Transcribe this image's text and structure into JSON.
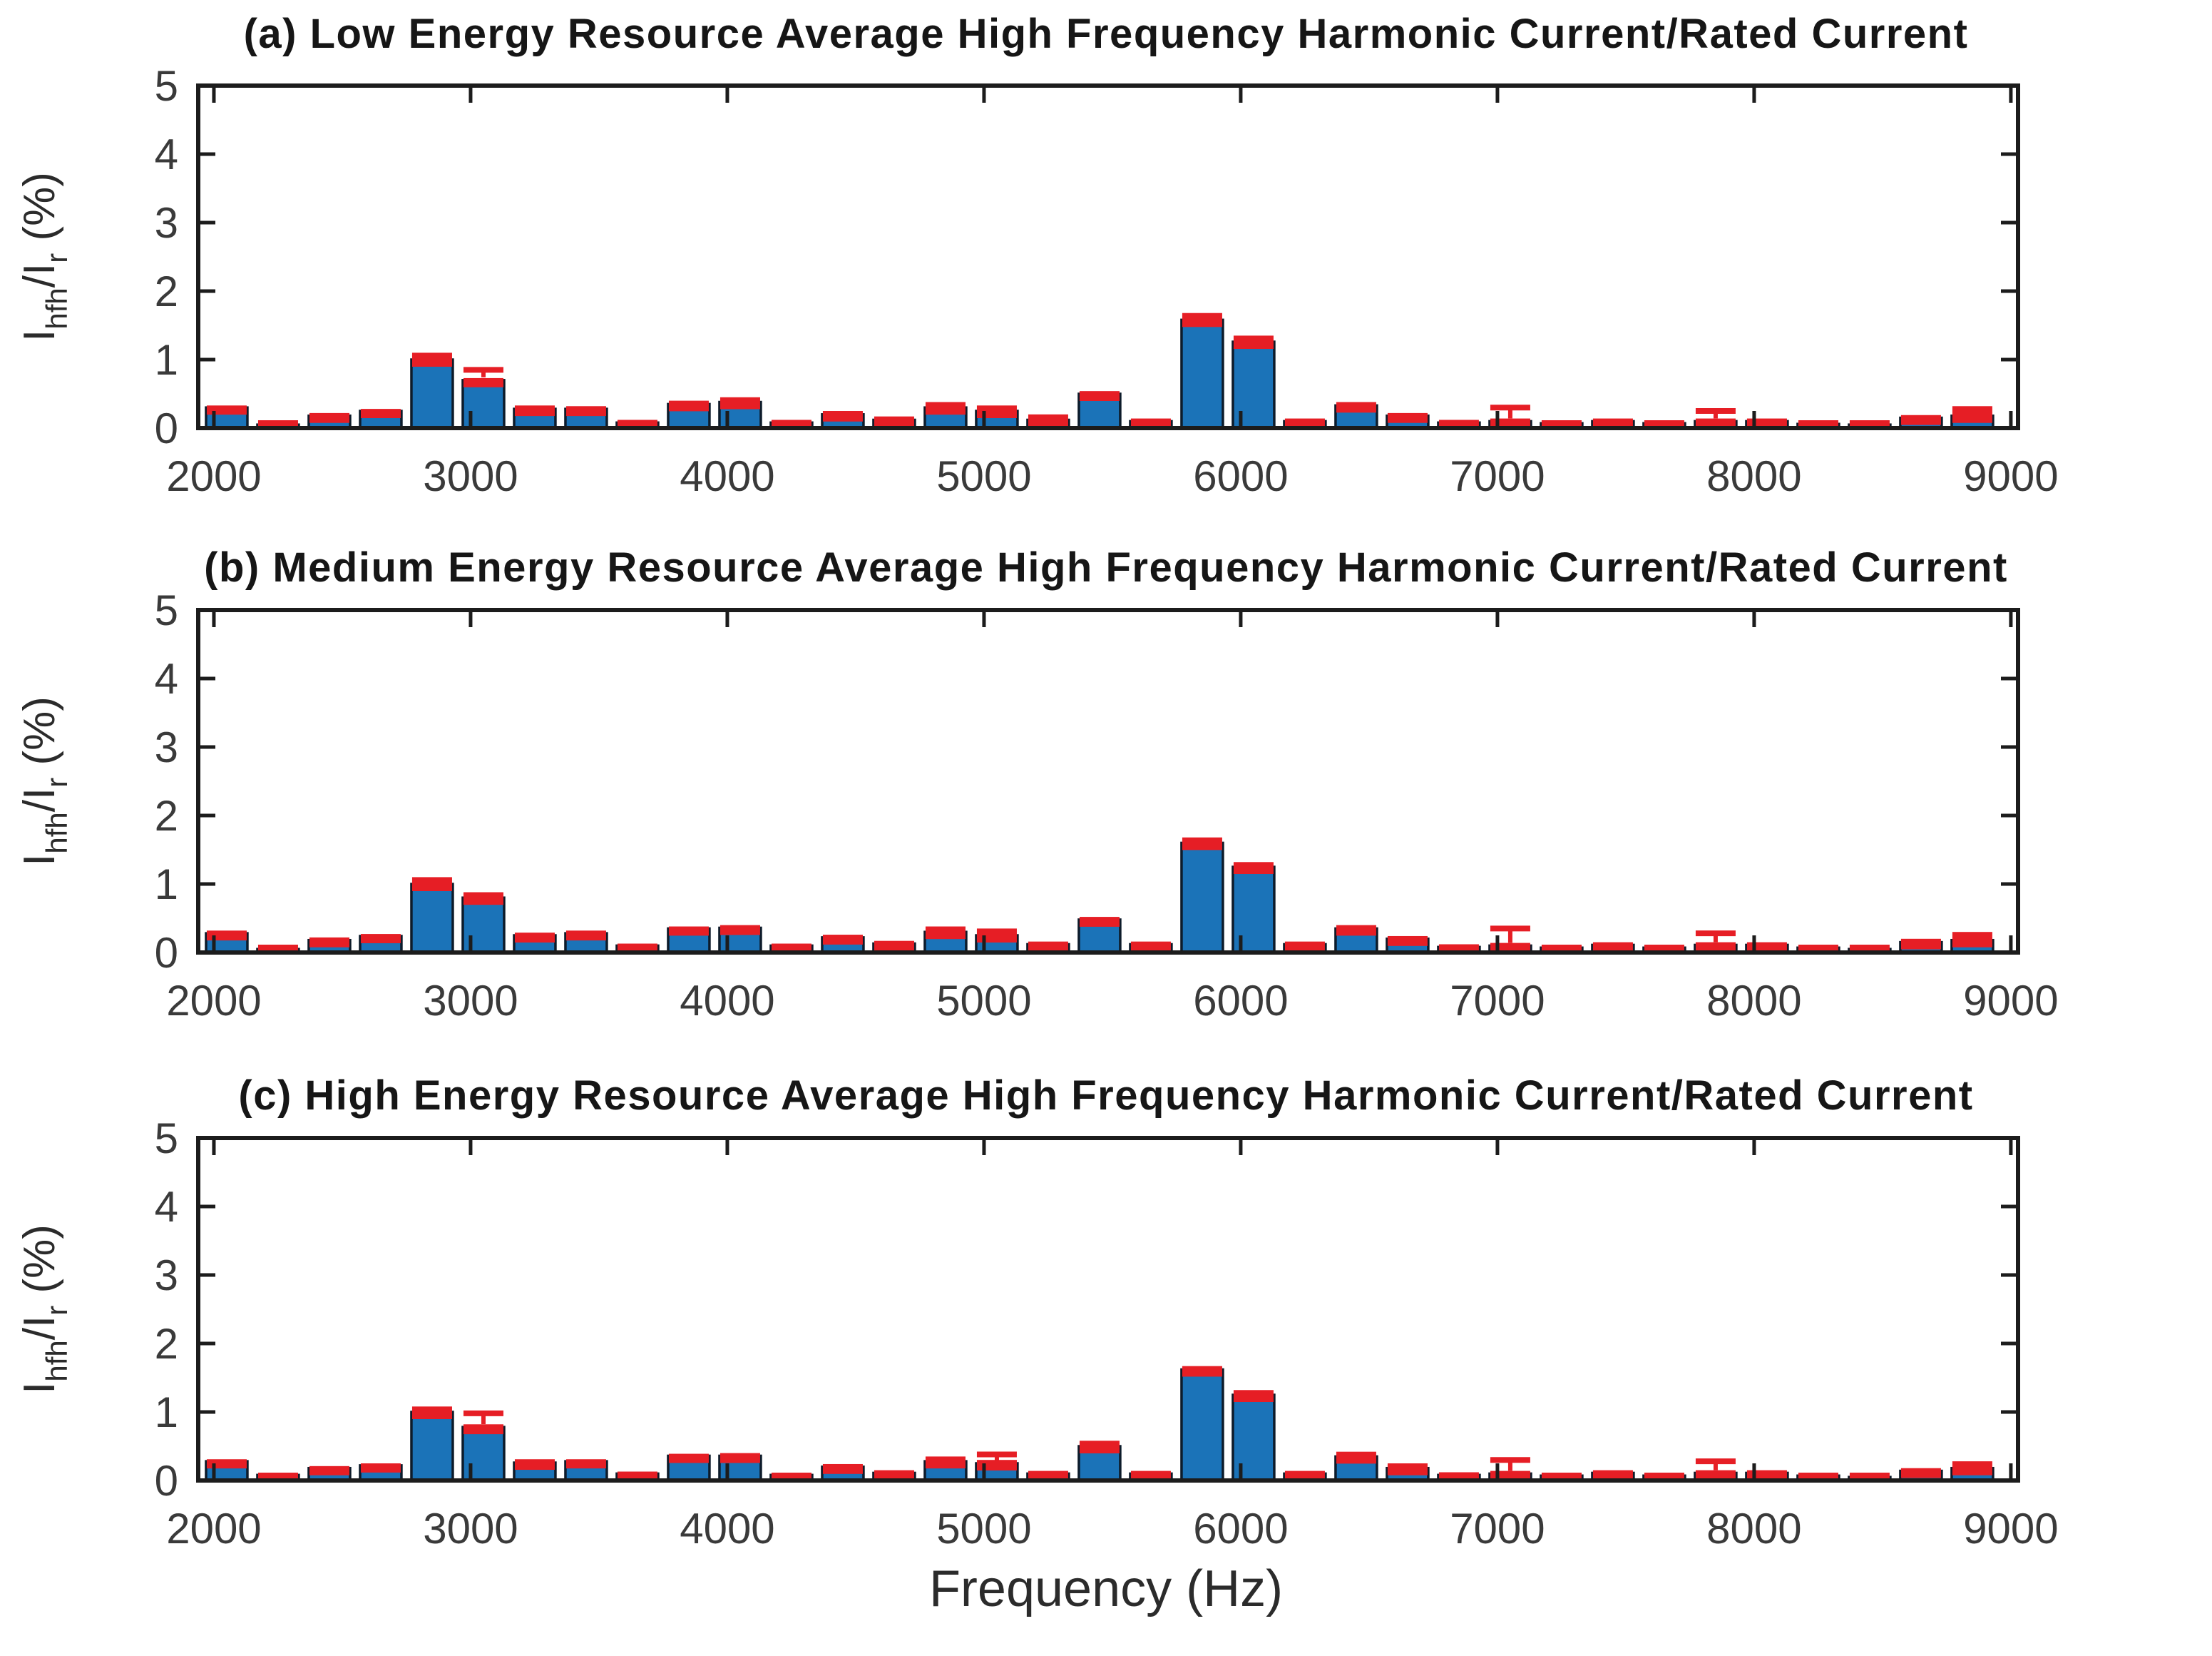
{
  "figure": {
    "xlabel": "Frequency (Hz)",
    "ylabel_plain": "I_hfh/I_r (%)",
    "ylabel_rich": [
      {
        "t": "I"
      },
      {
        "t": "hfh",
        "sub": true
      },
      {
        "t": "/I"
      },
      {
        "t": "r",
        "sub": true
      },
      {
        "t": " (%)"
      }
    ],
    "background": "#ffffff"
  },
  "colors": {
    "bar_fill": "#1b73b8",
    "bar_edge": "#0d1b2a",
    "error_red": "#e61e25",
    "axis": "#1c1c1c",
    "tick_text": "#3a3a3a",
    "title_text": "#161616"
  },
  "chart_data": [
    {
      "type": "bar",
      "title": "(a) Low Energy Resource Average High Frequency Harmonic Current/Rated Current",
      "xlabel": "",
      "ylabel": "I_hfh/I_r (%)",
      "xlim": [
        1939,
        9028
      ],
      "ylim": [
        0,
        5
      ],
      "xticks": [
        2000,
        3000,
        4000,
        5000,
        6000,
        7000,
        8000,
        9000
      ],
      "yticks": [
        0,
        1,
        2,
        3,
        4,
        5
      ],
      "grid": false,
      "legend": null,
      "x": [
        2050,
        2250,
        2450,
        2650,
        2850,
        3050,
        3250,
        3450,
        3650,
        3850,
        4050,
        4250,
        4450,
        4650,
        4850,
        5050,
        5250,
        5450,
        5650,
        5850,
        6050,
        6250,
        6450,
        6650,
        6850,
        7050,
        7250,
        7450,
        7650,
        7850,
        8050,
        8250,
        8450,
        8650,
        8850
      ],
      "series": [
        {
          "name": "average harmonic current ratio",
          "values": [
            0.3,
            0.05,
            0.18,
            0.25,
            1.0,
            0.7,
            0.28,
            0.28,
            0.08,
            0.35,
            0.38,
            0.08,
            0.2,
            0.12,
            0.3,
            0.25,
            0.12,
            0.5,
            0.1,
            1.58,
            1.26,
            0.1,
            0.33,
            0.18,
            0.08,
            0.1,
            0.07,
            0.1,
            0.07,
            0.1,
            0.1,
            0.06,
            0.05,
            0.15,
            0.18
          ]
        }
      ],
      "error_top": [
        0.33,
        0.08,
        0.22,
        0.28,
        1.1,
        0.73,
        0.33,
        0.32,
        0.12,
        0.4,
        0.45,
        0.12,
        0.25,
        0.17,
        0.38,
        0.33,
        0.2,
        0.54,
        0.14,
        1.68,
        1.35,
        0.14,
        0.38,
        0.22,
        0.12,
        0.14,
        0.1,
        0.14,
        0.1,
        0.14,
        0.14,
        0.09,
        0.08,
        0.19,
        0.32
      ],
      "whiskers": [
        [
          3050,
          0.85
        ],
        [
          7050,
          0.3
        ],
        [
          7850,
          0.25
        ]
      ]
    },
    {
      "type": "bar",
      "title": "(b) Medium Energy Resource Average High Frequency Harmonic Current/Rated Current",
      "xlabel": "",
      "ylabel": "I_hfh/I_r (%)",
      "xlim": [
        1939,
        9028
      ],
      "ylim": [
        0,
        5
      ],
      "xticks": [
        2000,
        3000,
        4000,
        5000,
        6000,
        7000,
        8000,
        9000
      ],
      "yticks": [
        0,
        1,
        2,
        3,
        4,
        5
      ],
      "grid": false,
      "legend": null,
      "x": [
        2050,
        2250,
        2450,
        2650,
        2850,
        3050,
        3250,
        3450,
        3650,
        3850,
        4050,
        4250,
        4450,
        4650,
        4850,
        5050,
        5250,
        5450,
        5650,
        5850,
        6050,
        6250,
        6450,
        6650,
        6850,
        7050,
        7250,
        7450,
        7650,
        7850,
        8050,
        8250,
        8450,
        8650,
        8850
      ],
      "series": [
        {
          "name": "average harmonic current ratio",
          "values": [
            0.28,
            0.05,
            0.18,
            0.24,
            1.0,
            0.8,
            0.25,
            0.28,
            0.1,
            0.35,
            0.36,
            0.1,
            0.22,
            0.13,
            0.3,
            0.25,
            0.12,
            0.48,
            0.12,
            1.6,
            1.25,
            0.12,
            0.35,
            0.2,
            0.08,
            0.1,
            0.07,
            0.11,
            0.07,
            0.11,
            0.11,
            0.07,
            0.05,
            0.15,
            0.18
          ]
        }
      ],
      "error_top": [
        0.32,
        0.08,
        0.22,
        0.27,
        1.1,
        0.88,
        0.29,
        0.32,
        0.13,
        0.38,
        0.4,
        0.13,
        0.26,
        0.17,
        0.38,
        0.35,
        0.16,
        0.52,
        0.16,
        1.68,
        1.32,
        0.16,
        0.4,
        0.24,
        0.12,
        0.14,
        0.1,
        0.15,
        0.1,
        0.15,
        0.15,
        0.1,
        0.08,
        0.2,
        0.3
      ],
      "whiskers": [
        [
          7050,
          0.35
        ],
        [
          7850,
          0.28
        ]
      ]
    },
    {
      "type": "bar",
      "title": "(c) High Energy Resource Average High Frequency Harmonic Current/Rated Current",
      "xlabel": "Frequency (Hz)",
      "ylabel": "I_hfh/I_r (%)",
      "xlim": [
        1939,
        9028
      ],
      "ylim": [
        0,
        5
      ],
      "xticks": [
        2000,
        3000,
        4000,
        5000,
        6000,
        7000,
        8000,
        9000
      ],
      "yticks": [
        0,
        1,
        2,
        3,
        4,
        5
      ],
      "grid": false,
      "legend": null,
      "x": [
        2050,
        2250,
        2450,
        2650,
        2850,
        3050,
        3250,
        3450,
        3650,
        3850,
        4050,
        4250,
        4450,
        4650,
        4850,
        5050,
        5250,
        5450,
        5650,
        5850,
        6050,
        6250,
        6450,
        6650,
        6850,
        7050,
        7250,
        7450,
        7650,
        7850,
        8050,
        8250,
        8450,
        8650,
        8850
      ],
      "series": [
        {
          "name": "average harmonic current ratio",
          "values": [
            0.28,
            0.08,
            0.18,
            0.22,
            1.0,
            0.78,
            0.26,
            0.28,
            0.1,
            0.36,
            0.36,
            0.08,
            0.2,
            0.11,
            0.28,
            0.25,
            0.1,
            0.5,
            0.1,
            1.62,
            1.25,
            0.1,
            0.35,
            0.18,
            0.08,
            0.1,
            0.07,
            0.11,
            0.07,
            0.11,
            0.11,
            0.07,
            0.05,
            0.14,
            0.18
          ]
        }
      ],
      "error_top": [
        0.31,
        0.11,
        0.21,
        0.25,
        1.08,
        0.82,
        0.31,
        0.31,
        0.13,
        0.39,
        0.4,
        0.11,
        0.24,
        0.15,
        0.35,
        0.3,
        0.14,
        0.58,
        0.14,
        1.67,
        1.32,
        0.14,
        0.42,
        0.25,
        0.12,
        0.14,
        0.1,
        0.15,
        0.1,
        0.15,
        0.15,
        0.1,
        0.08,
        0.18,
        0.28
      ],
      "whiskers": [
        [
          3050,
          0.98
        ],
        [
          5050,
          0.38
        ],
        [
          7050,
          0.3
        ],
        [
          7850,
          0.28
        ]
      ]
    }
  ]
}
